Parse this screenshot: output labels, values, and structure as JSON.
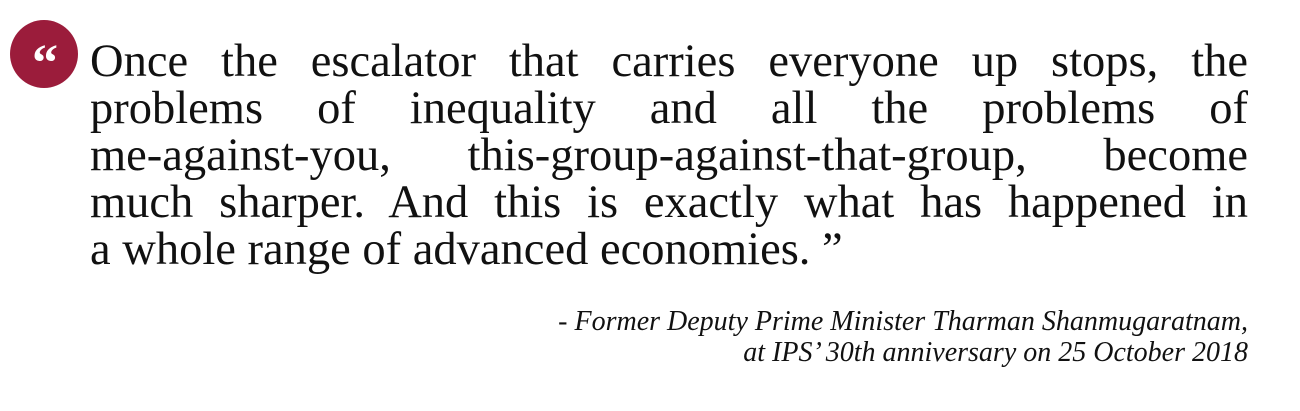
{
  "colors": {
    "badge": "#9b1c3b",
    "text": "#111111",
    "background": "#ffffff"
  },
  "icon": {
    "open_quote": "“",
    "name": "open-quote-icon"
  },
  "quote": {
    "lines": [
      "Once the escalator that carries everyone up stops, the",
      "problems of inequality and all the problems of",
      "me-against-you, this-group-against-that-group, become",
      "much sharper. And this is exactly what has happened in",
      "a whole range of advanced economies. ”"
    ]
  },
  "attribution": {
    "line1": "- Former Deputy Prime Minister Tharman Shanmugaratnam,",
    "line2": "at IPS’ 30th anniversary on 25 October 2018"
  }
}
